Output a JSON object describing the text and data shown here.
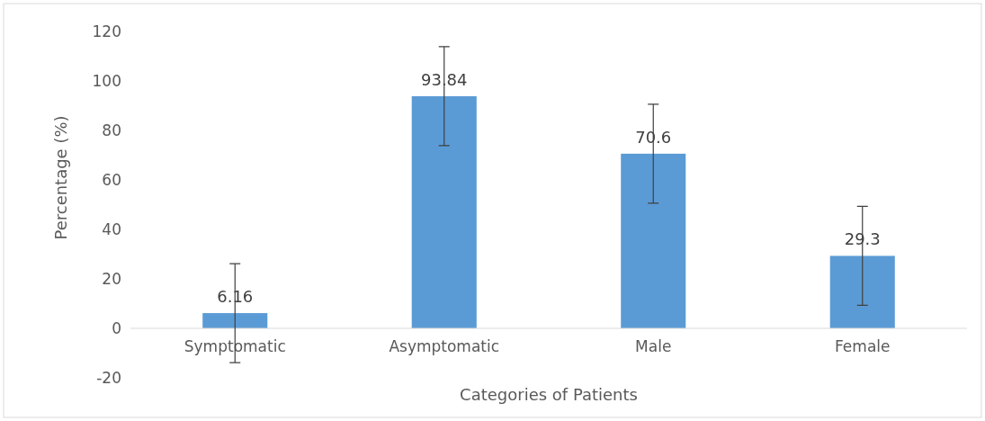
{
  "chart_data": {
    "type": "bar",
    "xlabel": "Categories of Patients",
    "ylabel": "Percentage (%)",
    "categories": [
      "Symptomatic",
      "Asymptomatic",
      "Male",
      "Female"
    ],
    "values": [
      6.16,
      93.84,
      70.6,
      29.3
    ],
    "errors": [
      20,
      20,
      20,
      20
    ],
    "color": "#5b9bd5",
    "ylim": [
      -20,
      120
    ],
    "yticks": [
      -20,
      0,
      20,
      40,
      60,
      80,
      100,
      120
    ],
    "data_labels": true
  }
}
